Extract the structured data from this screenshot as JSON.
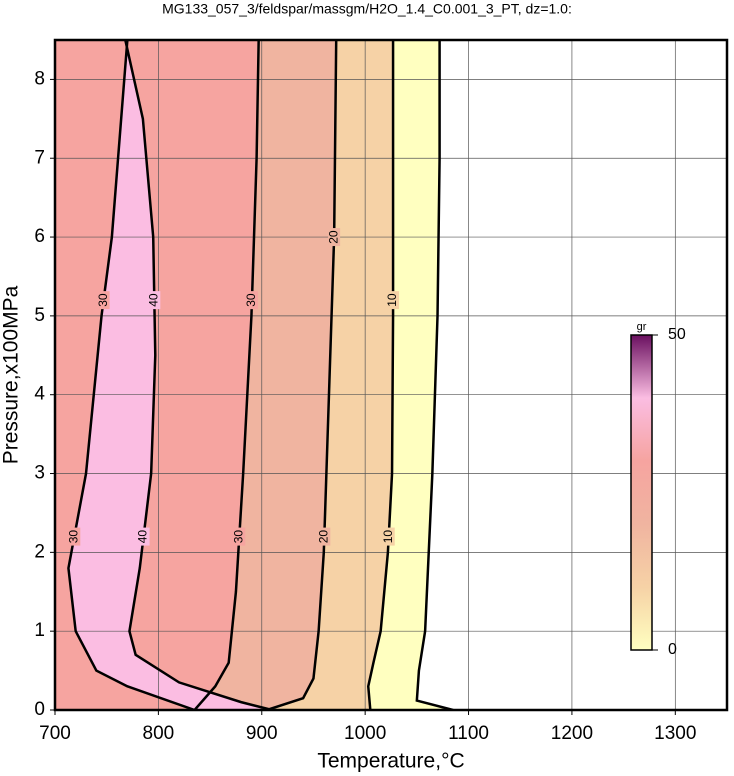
{
  "chart_data": {
    "type": "contour",
    "title": "MG133_057_3/feldspar/massgm/H2O_1.4_C0.001_3_PT, dz=1.0:",
    "xlabel": "Temperature,°C",
    "ylabel": "Pressure,x100MPa",
    "xlim": [
      700,
      1350
    ],
    "ylim": [
      0,
      8.5
    ],
    "xticks": [
      700,
      800,
      900,
      1000,
      1100,
      1200,
      1300
    ],
    "yticks": [
      0,
      1,
      2,
      3,
      4,
      5,
      6,
      7,
      8
    ],
    "grid": true,
    "colorbar": {
      "label": "gr",
      "lim": [
        0,
        50
      ],
      "ticks": [
        0,
        50
      ],
      "colors": [
        "#ffffc0",
        "#f6d2a6",
        "#f0b4a0",
        "#f6a4a0",
        "#fbbde2",
        "#6a1060"
      ]
    },
    "contours": [
      {
        "level": 0,
        "x": [
          1085,
          1050,
          1052,
          1058,
          1065,
          1070,
          1072,
          1072
        ],
        "y": [
          0,
          0.12,
          0.5,
          1,
          3,
          5,
          7,
          8.5
        ]
      },
      {
        "level": 10,
        "x": [
          1005,
          1003,
          1008,
          1015,
          1022,
          1026,
          1027,
          1027,
          1027
        ],
        "y": [
          0,
          0.3,
          0.6,
          1,
          2,
          3,
          5,
          7,
          8.5
        ]
      },
      {
        "level": 20,
        "x": [
          905,
          940,
          950,
          955,
          960,
          965,
          970,
          972
        ],
        "y": [
          0,
          0.15,
          0.4,
          1,
          2,
          4,
          6,
          8.5
        ]
      },
      {
        "level": 30,
        "x": [
          835,
          855,
          868,
          875,
          882,
          890,
          895,
          897
        ],
        "y": [
          0,
          0.3,
          0.6,
          1.5,
          3,
          5,
          7,
          8.5
        ]
      },
      {
        "level": 40,
        "x": [
          910,
          880,
          820,
          778,
          772,
          782,
          793,
          797,
          795,
          785,
          768
        ],
        "y": [
          0,
          0.1,
          0.35,
          0.7,
          1,
          1.8,
          3,
          4.5,
          6,
          7.5,
          8.5
        ]
      },
      {
        "level": 30,
        "x": [
          835,
          770,
          740,
          720,
          713,
          730,
          745,
          755,
          770
        ],
        "y": [
          0,
          0.3,
          0.5,
          1,
          1.8,
          3,
          5,
          6,
          8.5
        ]
      }
    ]
  }
}
